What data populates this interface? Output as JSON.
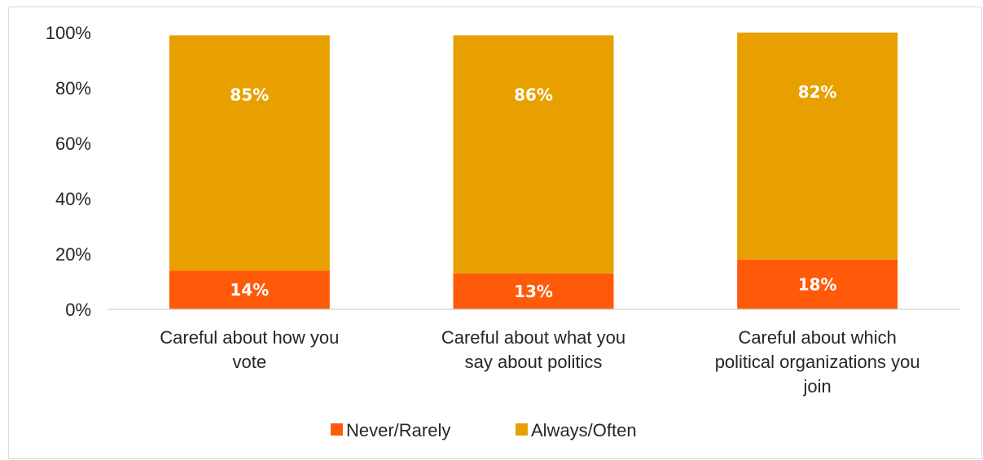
{
  "chart_data": {
    "type": "bar",
    "stacked": true,
    "categories": [
      "Careful about how you vote",
      "Careful about what you say about politics",
      "Careful about which political organizations you join"
    ],
    "category_lines": [
      [
        "Careful about how you",
        "vote"
      ],
      [
        "Careful about what you",
        "say about politics"
      ],
      [
        "Careful about which",
        "political organizations you",
        "join"
      ]
    ],
    "series": [
      {
        "name": "Never/Rarely",
        "color": "#ff5a0a",
        "values": [
          14,
          13,
          18
        ],
        "labels": [
          "14%",
          "13%",
          "18%"
        ]
      },
      {
        "name": "Always/Often",
        "color": "#e8a000",
        "values": [
          85,
          86,
          82
        ],
        "labels": [
          "85%",
          "86%",
          "82%"
        ]
      }
    ],
    "ylim": [
      0,
      100
    ],
    "yticks": [
      0,
      20,
      40,
      60,
      80,
      100
    ],
    "ytick_labels": [
      "0%",
      "20%",
      "40%",
      "60%",
      "80%",
      "100%"
    ],
    "grid": false,
    "legend_position": "bottom"
  }
}
